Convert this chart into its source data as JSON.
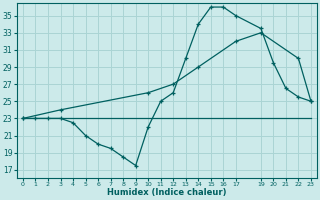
{
  "xlabel": "Humidex (Indice chaleur)",
  "bg_color": "#cceaea",
  "grid_color": "#aad4d4",
  "line_color": "#006060",
  "xlim": [
    -0.5,
    23.5
  ],
  "ylim": [
    16.0,
    36.5
  ],
  "yticks": [
    17,
    19,
    21,
    23,
    25,
    27,
    29,
    31,
    33,
    35
  ],
  "xticks": [
    0,
    1,
    2,
    3,
    4,
    5,
    6,
    7,
    8,
    9,
    10,
    11,
    12,
    13,
    14,
    15,
    16,
    17,
    19,
    20,
    21,
    22,
    23
  ],
  "xtick_labels": [
    "0",
    "1",
    "2",
    "3",
    "4",
    "5",
    "6",
    "7",
    "8",
    "9",
    "10",
    "11",
    "12",
    "13",
    "14",
    "15",
    "16",
    "17",
    "19",
    "20",
    "21",
    "22",
    "23"
  ],
  "line1_x": [
    0,
    1,
    2,
    3,
    4,
    5,
    6,
    7,
    8,
    9,
    10,
    11,
    12,
    13,
    14,
    15,
    16,
    17,
    19,
    20,
    21,
    22,
    23
  ],
  "line1_y": [
    23,
    23,
    23,
    23,
    22.5,
    21,
    20,
    19.5,
    18.5,
    17.5,
    22,
    25,
    26,
    30,
    34,
    36,
    36,
    35,
    33.5,
    29.5,
    26.5,
    25.5,
    25
  ],
  "line2_x": [
    0,
    3,
    10,
    17,
    23
  ],
  "line2_y": [
    23,
    23,
    23,
    23,
    23
  ],
  "line3_x": [
    0,
    3,
    10,
    12,
    14,
    17,
    19,
    22,
    23
  ],
  "line3_y": [
    23,
    24,
    26,
    27,
    29,
    32,
    33,
    30,
    25
  ]
}
